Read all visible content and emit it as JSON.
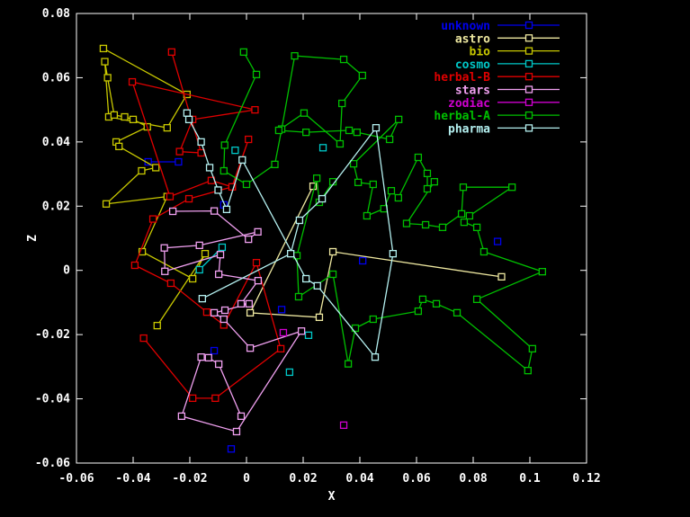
{
  "chart_data": {
    "type": "line",
    "title": "",
    "xlabel": "X",
    "ylabel": "Z",
    "xlim": [
      -0.06,
      0.12
    ],
    "ylim": [
      -0.06,
      0.08
    ],
    "xticks": [
      -0.06,
      -0.04,
      -0.02,
      0,
      0.02,
      0.04,
      0.06,
      0.08,
      0.1,
      0.12
    ],
    "xtick_labels": [
      "-0.06",
      "-0.04",
      "-0.02",
      "0",
      "0.02",
      "0.04",
      "0.06",
      "0.08",
      "0.1",
      "0.12"
    ],
    "yticks": [
      -0.06,
      -0.04,
      -0.02,
      0,
      0.02,
      0.04,
      0.06,
      0.08
    ],
    "ytick_labels": [
      "-0.06",
      "-0.04",
      "-0.02",
      "0",
      "0.02",
      "0.04",
      "0.06",
      "0.08"
    ],
    "grid": "off",
    "legend_position": "inside-top-right",
    "background_color": "#000000",
    "axis_color": "#ffffff",
    "marker": "open-square",
    "series": [
      {
        "name": "unknown",
        "color": "#0000ee",
        "segments": [
          [
            [
              -0.0347,
              0.0338
            ],
            [
              -0.024,
              0.0338
            ]
          ],
          [
            [
              -0.008,
              0.0204
            ]
          ],
          [
            [
              0.041,
              0.003
            ]
          ],
          [
            [
              0.0886,
              0.009
            ]
          ],
          [
            [
              0.0124,
              -0.0122
            ]
          ],
          [
            [
              -0.0114,
              -0.025
            ]
          ],
          [
            [
              -0.0054,
              -0.0556
            ]
          ]
        ]
      },
      {
        "name": "astro",
        "color": "#eee8a0",
        "segments": [
          [
            [
              0.0235,
              0.0262
            ],
            [
              0.0013,
              -0.0132
            ],
            [
              0.0257,
              -0.0146
            ],
            [
              0.0305,
              0.0058
            ],
            [
              0.09,
              -0.002
            ]
          ]
        ]
      },
      {
        "name": "bio",
        "color": "#c8c800",
        "segments": [
          [
            [
              -0.0505,
              0.0691
            ],
            [
              -0.021,
              0.0548
            ],
            [
              -0.028,
              0.0444
            ],
            [
              -0.0486,
              0.0478
            ],
            [
              -0.05,
              0.065
            ],
            [
              -0.049,
              0.06
            ],
            [
              -0.0467,
              0.0484
            ],
            [
              -0.043,
              0.0478
            ],
            [
              -0.04,
              0.047
            ],
            [
              -0.035,
              0.0447
            ],
            [
              -0.046,
              0.04
            ],
            [
              -0.045,
              0.0386
            ],
            [
              -0.032,
              0.032
            ],
            [
              -0.037,
              0.031
            ],
            [
              -0.0495,
              0.0207
            ],
            [
              -0.028,
              0.023
            ],
            [
              -0.0368,
              0.0058
            ],
            [
              -0.019,
              -0.0026
            ],
            [
              -0.0146,
              0.0052
            ],
            [
              -0.0315,
              -0.0172
            ]
          ]
        ]
      },
      {
        "name": "cosmo",
        "color": "#00c8c8",
        "segments": [
          [
            [
              -0.004,
              0.0374
            ]
          ],
          [
            [
              0.027,
              0.0382
            ]
          ],
          [
            [
              -0.0166,
              0.0002
            ],
            [
              -0.0086,
              0.0072
            ]
          ],
          [
            [
              0.0219,
              -0.0202
            ]
          ],
          [
            [
              0.0152,
              -0.0317
            ]
          ]
        ]
      },
      {
        "name": "herbal-B",
        "color": "#e00000",
        "segments": [
          [
            [
              -0.0264,
              0.068
            ],
            [
              -0.016,
              0.0366
            ],
            [
              -0.0236,
              0.037
            ],
            [
              -0.019,
              0.047
            ],
            [
              0.003,
              0.05
            ],
            [
              -0.0403,
              0.0587
            ],
            [
              -0.027,
              0.023
            ],
            [
              -0.0124,
              0.028
            ],
            [
              -0.005,
              0.026
            ],
            [
              0.0007,
              0.0408
            ],
            [
              -0.0051,
              0.026
            ],
            [
              -0.0203,
              0.0223
            ],
            [
              -0.033,
              0.016
            ],
            [
              -0.0394,
              0.0016
            ],
            [
              -0.0267,
              -0.004
            ],
            [
              -0.014,
              -0.013
            ],
            [
              -0.008,
              -0.017
            ],
            [
              0.0035,
              0.0024
            ],
            [
              0.0121,
              -0.0244
            ],
            [
              -0.011,
              -0.0398
            ],
            [
              -0.019,
              -0.0398
            ],
            [
              -0.0363,
              -0.0211
            ]
          ]
        ]
      },
      {
        "name": "stars",
        "color": "#f0a0f0",
        "segments": [
          [
            [
              -0.026,
              0.0184
            ],
            [
              -0.0114,
              0.0185
            ],
            [
              0.0007,
              0.0097
            ],
            [
              0.004,
              0.012
            ],
            [
              -0.0166,
              0.0078
            ],
            [
              -0.029,
              0.007
            ],
            [
              -0.0288,
              -0.0003
            ],
            [
              -0.0092,
              0.0049
            ],
            [
              -0.0098,
              -0.0012
            ],
            [
              0.0041,
              -0.0032
            ],
            [
              -0.0019,
              -0.0104
            ],
            [
              0.0009,
              -0.0104
            ],
            [
              -0.0076,
              -0.0124
            ],
            [
              -0.0114,
              -0.0132
            ],
            [
              -0.008,
              -0.0152
            ],
            [
              0.0013,
              -0.0242
            ],
            [
              0.0194,
              -0.0189
            ],
            [
              -0.0035,
              -0.0502
            ],
            [
              -0.0229,
              -0.0454
            ],
            [
              -0.016,
              -0.027
            ],
            [
              -0.0134,
              -0.0272
            ],
            [
              -0.0098,
              -0.0292
            ],
            [
              -0.0019,
              -0.0454
            ]
          ]
        ]
      },
      {
        "name": "zodiac",
        "color": "#d000d0",
        "segments": [
          [
            [
              0.013,
              -0.0194
            ]
          ],
          [
            [
              0.0343,
              -0.0482
            ]
          ]
        ]
      },
      {
        "name": "herbal-A",
        "color": "#00c000",
        "segments": [
          [
            [
              -0.001,
              0.068
            ],
            [
              0.0035,
              0.061
            ],
            [
              -0.0077,
              0.039
            ],
            [
              -0.008,
              0.031
            ],
            [
              0.0,
              0.0268
            ],
            [
              0.01,
              0.033
            ],
            [
              0.0124,
              0.044
            ],
            [
              0.017,
              0.0668
            ],
            [
              0.0343,
              0.0657
            ],
            [
              0.0409,
              0.0607
            ],
            [
              0.0337,
              0.052
            ],
            [
              0.033,
              0.0394
            ],
            [
              0.0203,
              0.049
            ],
            [
              0.0114,
              0.0436
            ],
            [
              0.021,
              0.043
            ],
            [
              0.0362,
              0.0436
            ],
            [
              0.039,
              0.043
            ],
            [
              0.0505,
              0.0408
            ],
            [
              0.0537,
              0.047
            ],
            [
              0.0378,
              0.0332
            ],
            [
              0.0394,
              0.0274
            ],
            [
              0.0447,
              0.0268
            ],
            [
              0.0425,
              0.017
            ],
            [
              0.0485,
              0.0192
            ],
            [
              0.0511,
              0.0248
            ],
            [
              0.0536,
              0.0226
            ],
            [
              0.0606,
              0.0352
            ],
            [
              0.0638,
              0.0302
            ],
            [
              0.0638,
              0.0254
            ],
            [
              0.0663,
              0.0276
            ],
            [
              0.0565,
              0.0146
            ],
            [
              0.0632,
              0.0142
            ],
            [
              0.0692,
              0.0134
            ],
            [
              0.0759,
              0.0176
            ],
            [
              0.0765,
              0.0259
            ],
            [
              0.0937,
              0.0259
            ],
            [
              0.0787,
              0.017
            ],
            [
              0.0768,
              0.015
            ],
            [
              0.0813,
              0.0134
            ],
            [
              0.0838,
              0.0058
            ],
            [
              0.1044,
              -0.0004
            ],
            [
              0.0813,
              -0.009
            ],
            [
              0.1009,
              -0.0244
            ],
            [
              0.0993,
              -0.0312
            ],
            [
              0.0743,
              -0.0132
            ],
            [
              0.067,
              -0.0104
            ],
            [
              0.0622,
              -0.009
            ],
            [
              0.0606,
              -0.0127
            ],
            [
              0.0447,
              -0.0152
            ],
            [
              0.0384,
              -0.018
            ],
            [
              0.0359,
              -0.0291
            ],
            [
              0.0305,
              -0.0012
            ],
            [
              0.0184,
              -0.0082
            ],
            [
              0.0178,
              0.0046
            ],
            [
              0.0248,
              0.0287
            ],
            [
              0.0257,
              0.0212
            ],
            [
              0.0305,
              0.0276
            ]
          ]
        ]
      },
      {
        "name": "pharma",
        "color": "#b4f0f0",
        "segments": [
          [
            [
              -0.021,
              0.049
            ],
            [
              -0.0203,
              0.047
            ],
            [
              -0.016,
              0.04
            ],
            [
              -0.013,
              0.032
            ],
            [
              -0.01,
              0.025
            ],
            [
              -0.007,
              0.019
            ],
            [
              -0.0015,
              0.0344
            ],
            [
              0.021,
              -0.0026
            ],
            [
              0.025,
              -0.0048
            ],
            [
              0.0454,
              -0.027
            ],
            [
              0.0517,
              0.0052
            ],
            [
              0.0457,
              0.0444
            ],
            [
              0.0267,
              0.0223
            ],
            [
              0.0187,
              0.0156
            ],
            [
              0.0156,
              0.0052
            ],
            [
              -0.0156,
              -0.0088
            ]
          ]
        ]
      }
    ]
  }
}
